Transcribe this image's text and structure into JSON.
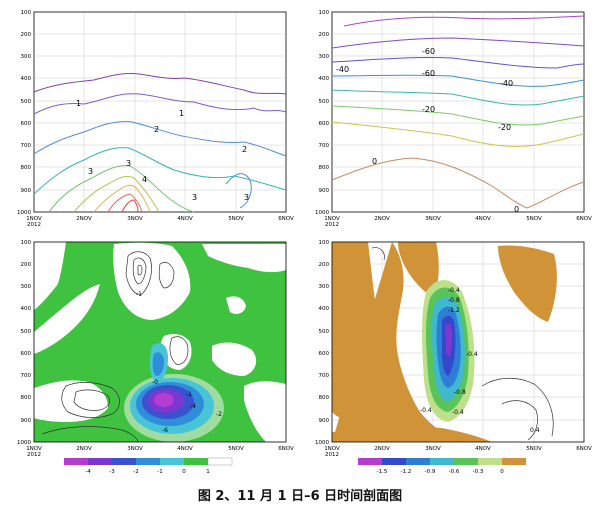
{
  "caption": "图 2、11 月 1 日–6 日时间剖面图",
  "axes": {
    "y_ticks": [
      "100",
      "200",
      "300",
      "400",
      "500",
      "600",
      "700",
      "800",
      "900",
      "1000"
    ],
    "x_ticks": [
      "1NOV\n2012",
      "2NOV",
      "3NOV",
      "4NOV",
      "5NOV",
      "6NOV"
    ]
  },
  "panels": [
    {
      "id": "a",
      "contour_labels": [
        "1",
        "1",
        "2",
        "2",
        "3",
        "3",
        "4",
        "3",
        "3"
      ]
    },
    {
      "id": "b",
      "contour_labels": [
        "-60",
        "-40",
        "-60",
        "-40",
        "-20",
        "-20",
        "0",
        "0"
      ]
    },
    {
      "id": "c",
      "contour_labels": [
        "-0",
        "-1",
        "-4",
        "-6",
        "-2",
        "-1"
      ],
      "colorbar_labels": [
        "-4",
        "-3",
        "-2",
        "-1",
        "0",
        "1"
      ]
    },
    {
      "id": "d",
      "contour_labels": [
        "-0.4",
        "-0.8",
        "-1.2",
        "-0.4",
        "-0.8",
        "-0.4",
        "-0.4",
        "0.4"
      ],
      "colorbar_labels": [
        "-1.5",
        "-1.2",
        "-0.9",
        "-0.6",
        "-0.3",
        "0"
      ]
    }
  ]
}
